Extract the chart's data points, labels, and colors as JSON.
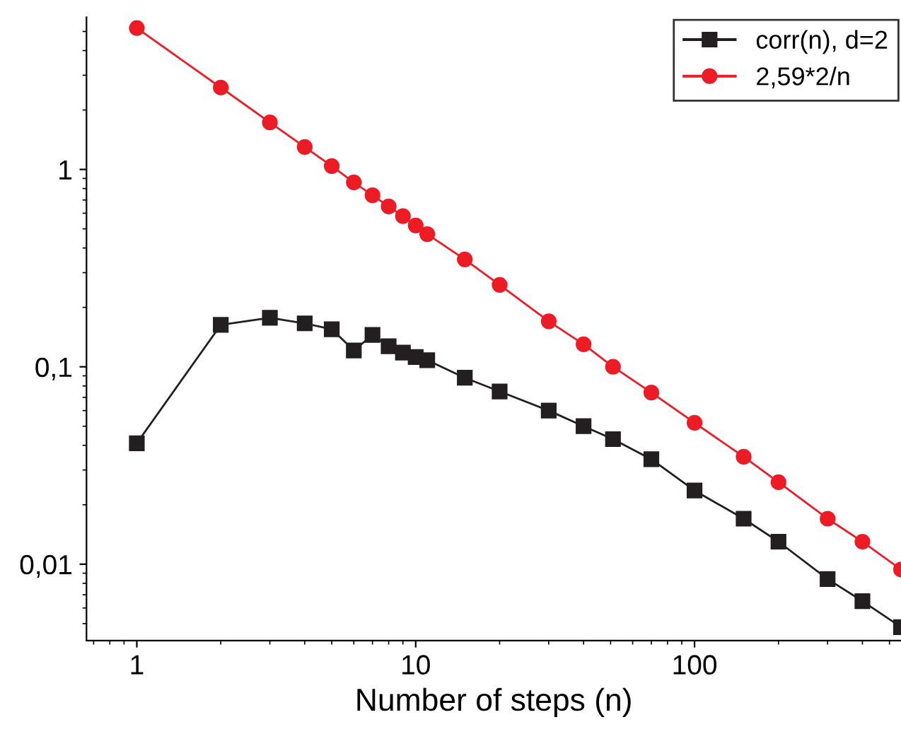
{
  "chart_data": {
    "type": "line",
    "xlabel": "Number of steps (n)",
    "log": "xy",
    "xlim": [
      0.66,
      550
    ],
    "ylim": [
      0.0041,
      5.9
    ],
    "xticks": [
      1,
      10,
      100
    ],
    "yticks": [
      {
        "value": 0.01,
        "label": "0,01"
      },
      {
        "value": 0.1,
        "label": "0,1"
      },
      {
        "value": 1,
        "label": "1"
      }
    ],
    "grid": false,
    "legend": "top right",
    "x": [
      1,
      2,
      3,
      4,
      5,
      6,
      7,
      8,
      9,
      10,
      11,
      15,
      20,
      30,
      40,
      51,
      70,
      100,
      150,
      200,
      300,
      400,
      550
    ],
    "series": [
      {
        "name": "corr(n), d=2",
        "color": "#231f20",
        "marker": "square",
        "values": [
          0.041,
          0.163,
          0.177,
          0.166,
          0.155,
          0.121,
          0.145,
          0.127,
          0.118,
          0.112,
          0.108,
          0.088,
          0.075,
          0.06,
          0.05,
          0.043,
          0.034,
          0.0236,
          0.017,
          0.013,
          0.0084,
          0.0065,
          0.0048
        ]
      },
      {
        "name": "2,59*2/n",
        "color": "#ed1c24",
        "marker": "circle",
        "values": [
          5.2,
          2.6,
          1.73,
          1.3,
          1.04,
          0.86,
          0.74,
          0.65,
          0.58,
          0.52,
          0.47,
          0.35,
          0.26,
          0.17,
          0.13,
          0.1,
          0.074,
          0.052,
          0.035,
          0.026,
          0.017,
          0.013,
          0.0094
        ]
      }
    ],
    "line_style": "solid"
  }
}
